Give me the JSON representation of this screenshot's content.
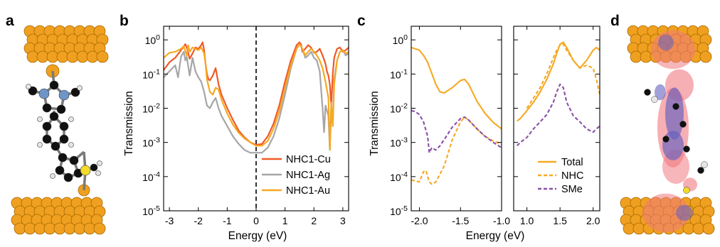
{
  "figure": {
    "panel_labels": [
      "a",
      "b",
      "c",
      "d"
    ]
  },
  "colors": {
    "cu": "#f05a28",
    "ag": "#a6a6a6",
    "au": "#f7a823",
    "total": "#f7a823",
    "nhc": "#f7a823",
    "sme": "#8a4fa8",
    "gold": "#f0a020",
    "carbon": "#111111",
    "nitrogen": "#6f95c8",
    "hydrogen": "#e6e6e6",
    "sulfur": "#f2dc2a",
    "density_positive": "#f07a80",
    "density_negative": "#6460c0"
  },
  "chart_data": [
    {
      "type": "line",
      "panel": "b",
      "xlabel": "Energy (eV)",
      "ylabel": "Transmission",
      "xlim": [
        -3.2,
        3.2
      ],
      "ylim": [
        1e-05,
        2.5
      ],
      "yscale": "log",
      "x_ticks": [
        -3,
        -2,
        -1,
        0,
        1,
        2,
        3
      ],
      "x_tick_labels": [
        "-3",
        "-2",
        "-1",
        "0",
        "1",
        "2",
        "3"
      ],
      "y_ticks": [
        1e-05,
        0.0001,
        0.001,
        0.01,
        0.1,
        1
      ],
      "y_tick_labels": [
        {
          "base": "10",
          "exp": "-5"
        },
        {
          "base": "10",
          "exp": "-4"
        },
        {
          "base": "10",
          "exp": "-3"
        },
        {
          "base": "10",
          "exp": "-2"
        },
        {
          "base": "10",
          "exp": "-1"
        },
        {
          "base": "10",
          "exp": "0"
        }
      ],
      "fermi_line_x": 0,
      "legend_position": "bottom-right",
      "series": [
        {
          "name": "NHC1-Cu",
          "color": "#f05a28",
          "style": "solid",
          "x": [
            -3.2,
            -3.0,
            -2.8,
            -2.6,
            -2.5,
            -2.45,
            -2.4,
            -2.3,
            -2.2,
            -2.1,
            -2.0,
            -1.9,
            -1.85,
            -1.8,
            -1.75,
            -1.7,
            -1.65,
            -1.6,
            -1.5,
            -1.4,
            -1.3,
            -1.2,
            -1.0,
            -0.8,
            -0.6,
            -0.4,
            -0.2,
            0.0,
            0.2,
            0.4,
            0.6,
            0.8,
            1.0,
            1.2,
            1.4,
            1.5,
            1.55,
            1.6,
            1.7,
            1.8,
            1.9,
            2.0,
            2.1,
            2.2,
            2.3,
            2.4,
            2.45,
            2.5,
            2.55,
            2.6,
            2.65,
            2.7,
            2.8,
            2.9,
            3.0,
            3.1,
            3.2
          ],
          "y": [
            0.13,
            0.22,
            0.3,
            0.5,
            0.65,
            0.75,
            0.6,
            0.28,
            0.4,
            0.6,
            0.55,
            0.7,
            0.85,
            0.5,
            0.2,
            0.1,
            0.07,
            0.065,
            0.09,
            0.15,
            0.05,
            0.025,
            0.01,
            0.0045,
            0.0022,
            0.0014,
            0.001,
            0.00085,
            0.0009,
            0.0015,
            0.0035,
            0.012,
            0.06,
            0.25,
            0.7,
            0.85,
            0.75,
            0.45,
            0.55,
            0.7,
            0.6,
            0.42,
            0.45,
            0.55,
            0.35,
            0.2,
            0.12,
            0.09,
            0.05,
            0.012,
            0.1,
            0.3,
            0.55,
            0.6,
            0.45,
            0.5,
            0.6
          ]
        },
        {
          "name": "NHC1-Ag",
          "color": "#a6a6a6",
          "style": "solid",
          "x": [
            -3.2,
            -3.0,
            -2.8,
            -2.7,
            -2.6,
            -2.5,
            -2.45,
            -2.4,
            -2.3,
            -2.2,
            -2.1,
            -2.0,
            -1.9,
            -1.8,
            -1.7,
            -1.6,
            -1.5,
            -1.4,
            -1.3,
            -1.2,
            -1.0,
            -0.8,
            -0.6,
            -0.4,
            -0.2,
            0.0,
            0.2,
            0.4,
            0.6,
            0.8,
            1.0,
            1.2,
            1.4,
            1.5,
            1.6,
            1.7,
            1.8,
            1.9,
            2.0,
            2.1,
            2.2,
            2.3,
            2.35,
            2.4,
            2.5,
            2.55,
            2.6,
            2.65,
            2.7,
            2.8,
            2.9,
            3.0,
            3.1,
            3.2
          ],
          "y": [
            0.08,
            0.12,
            0.18,
            0.08,
            0.32,
            0.45,
            0.25,
            0.32,
            0.09,
            0.3,
            0.12,
            0.08,
            0.06,
            0.03,
            0.012,
            0.01,
            0.015,
            0.02,
            0.01,
            0.006,
            0.003,
            0.0015,
            0.0009,
            0.0006,
            0.0005,
            0.0005,
            0.0005,
            0.0007,
            0.0015,
            0.005,
            0.025,
            0.15,
            0.55,
            0.75,
            0.55,
            0.3,
            0.35,
            0.45,
            0.3,
            0.25,
            0.12,
            0.01,
            0.002,
            0.012,
            0.006,
            0.0006,
            0.01,
            0.003,
            0.07,
            0.25,
            0.45,
            0.5,
            0.35,
            0.4
          ]
        },
        {
          "name": "NHC1-Au",
          "color": "#f7a823",
          "style": "solid",
          "x": [
            -3.2,
            -3.0,
            -2.8,
            -2.6,
            -2.5,
            -2.4,
            -2.35,
            -2.3,
            -2.2,
            -2.1,
            -2.0,
            -1.9,
            -1.8,
            -1.75,
            -1.7,
            -1.6,
            -1.5,
            -1.4,
            -1.3,
            -1.2,
            -1.0,
            -0.8,
            -0.6,
            -0.4,
            -0.2,
            0.0,
            0.2,
            0.4,
            0.6,
            0.8,
            1.0,
            1.2,
            1.4,
            1.5,
            1.6,
            1.7,
            1.8,
            1.9,
            2.0,
            2.1,
            2.2,
            2.3,
            2.4,
            2.5,
            2.55,
            2.6,
            2.65,
            2.7,
            2.8,
            2.9,
            3.0,
            3.1,
            3.2
          ],
          "y": [
            0.3,
            0.42,
            0.45,
            0.55,
            0.65,
            0.35,
            0.7,
            0.45,
            0.6,
            0.55,
            0.5,
            0.6,
            0.4,
            0.2,
            0.07,
            0.03,
            0.025,
            0.04,
            0.035,
            0.018,
            0.007,
            0.0033,
            0.0019,
            0.0013,
            0.001,
            0.0008,
            0.0008,
            0.0011,
            0.0025,
            0.008,
            0.04,
            0.18,
            0.55,
            0.75,
            0.55,
            0.35,
            0.45,
            0.55,
            0.45,
            0.35,
            0.25,
            0.15,
            0.06,
            0.02,
            0.0006,
            0.015,
            0.003,
            0.05,
            0.25,
            0.45,
            0.5,
            0.4,
            0.45
          ]
        }
      ]
    },
    {
      "type": "line",
      "panel": "c",
      "xlabel": "Energy (eV)",
      "ylabel": "Transmission",
      "yscale": "log",
      "ylim": [
        1e-05,
        2.5
      ],
      "broken_x_axis": true,
      "subplots": [
        {
          "xlim": [
            -2.1,
            -1.0
          ],
          "x_ticks": [
            -2.0,
            -1.5,
            -1.0
          ],
          "x_tick_labels": [
            "-2.0",
            "-1.5",
            "-1.0"
          ]
        },
        {
          "xlim": [
            0.8,
            2.1
          ],
          "x_ticks": [
            1.0,
            1.5,
            2.0
          ],
          "x_tick_labels": [
            "1.0",
            "1.5",
            "2.0"
          ]
        }
      ],
      "y_ticks": [
        1e-05,
        0.0001,
        0.001,
        0.01,
        0.1,
        1
      ],
      "y_tick_labels": [
        {
          "base": "10",
          "exp": "-5"
        },
        {
          "base": "10",
          "exp": "-4"
        },
        {
          "base": "10",
          "exp": "-3"
        },
        {
          "base": "10",
          "exp": "-2"
        },
        {
          "base": "10",
          "exp": "-1"
        },
        {
          "base": "10",
          "exp": "0"
        }
      ],
      "legend_position": "bottom-right",
      "series": [
        {
          "name": "Total",
          "color": "#f7a823",
          "style": "solid",
          "x": [
            -2.1,
            -2.0,
            -1.95,
            -1.9,
            -1.8,
            -1.75,
            -1.7,
            -1.6,
            -1.5,
            -1.45,
            -1.4,
            -1.3,
            -1.2,
            -1.1,
            -1.0
          ],
          "y": [
            0.6,
            0.5,
            0.35,
            0.22,
            0.05,
            0.03,
            0.028,
            0.04,
            0.065,
            0.07,
            0.05,
            0.016,
            0.007,
            0.0038,
            0.0025
          ],
          "x2": [
            0.85,
            0.9,
            1.0,
            1.1,
            1.2,
            1.3,
            1.4,
            1.45,
            1.5,
            1.55,
            1.6,
            1.7,
            1.8,
            1.9,
            2.0,
            2.05,
            2.1
          ],
          "y2": [
            0.0042,
            0.005,
            0.0085,
            0.015,
            0.03,
            0.07,
            0.2,
            0.4,
            0.75,
            0.85,
            0.6,
            0.25,
            0.15,
            0.25,
            0.5,
            0.6,
            0.5
          ]
        },
        {
          "name": "NHC",
          "color": "#f7a823",
          "style": "dashed",
          "x": [
            -2.1,
            -2.0,
            -1.95,
            -1.92,
            -1.9,
            -1.88,
            -1.85,
            -1.8,
            -1.7,
            -1.6,
            -1.5,
            -1.45,
            -1.4,
            -1.3,
            -1.2,
            -1.1,
            -1.0
          ],
          "y": [
            8e-05,
            7e-05,
            0.00014,
            0.00015,
            0.0001,
            7e-05,
            6e-05,
            7e-05,
            0.0002,
            0.0012,
            0.004,
            0.0055,
            0.0045,
            0.0025,
            0.0015,
            0.0011,
            0.0009
          ],
          "x2": [
            1.0,
            1.1,
            1.2,
            1.3,
            1.4,
            1.45,
            1.5,
            1.55,
            1.6,
            1.7,
            1.8,
            1.9,
            2.0,
            2.05,
            2.1
          ],
          "y2": [
            0.01,
            0.02,
            0.04,
            0.1,
            0.3,
            0.5,
            0.7,
            0.75,
            0.5,
            0.25,
            0.15,
            0.18,
            0.15,
            0.07,
            0.025
          ]
        },
        {
          "name": "SMe",
          "color": "#8a4fa8",
          "style": "dashed",
          "x": [
            -2.1,
            -2.05,
            -2.0,
            -1.95,
            -1.9,
            -1.88,
            -1.85,
            -1.8,
            -1.75,
            -1.7,
            -1.6,
            -1.5,
            -1.45,
            -1.4,
            -1.3,
            -1.2,
            -1.1,
            -1.0
          ],
          "y": [
            0.0085,
            0.008,
            0.0065,
            0.004,
            0.0015,
            0.0005,
            0.0007,
            0.0006,
            0.0008,
            0.0012,
            0.0028,
            0.005,
            0.0055,
            0.0045,
            0.0025,
            0.0015,
            0.001,
            0.0007
          ],
          "x2": [
            0.85,
            0.9,
            1.0,
            1.1,
            1.2,
            1.3,
            1.4,
            1.45,
            1.5,
            1.55,
            1.6,
            1.7,
            1.8,
            1.9,
            2.0,
            2.05,
            2.1
          ],
          "y2": [
            0.0008,
            0.001,
            0.0014,
            0.0025,
            0.004,
            0.0065,
            0.015,
            0.03,
            0.05,
            0.04,
            0.015,
            0.006,
            0.004,
            0.0025,
            0.002,
            0.0025,
            0.003
          ]
        }
      ]
    }
  ]
}
